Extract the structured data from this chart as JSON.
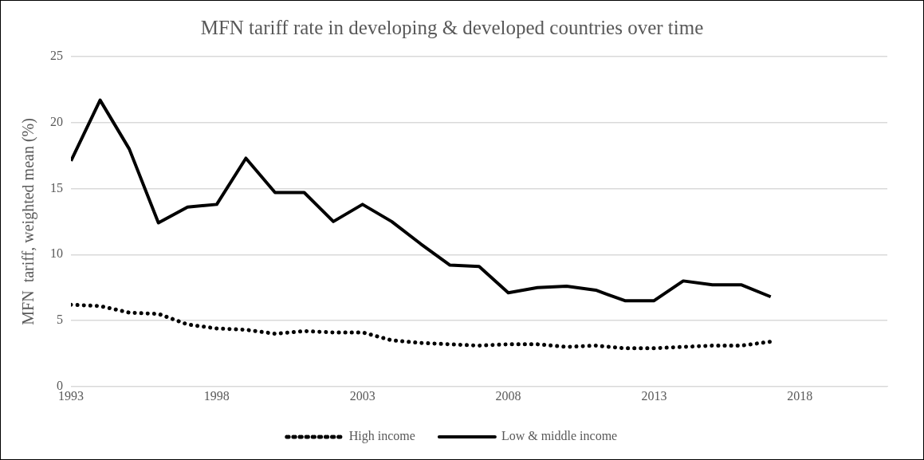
{
  "chart_data": {
    "type": "line",
    "title": "MFN tariff rate in developing & developed countries over time",
    "ylabel": "MFN  tariff, weighted mean (%)",
    "x": [
      1993,
      1994,
      1995,
      1996,
      1997,
      1998,
      1999,
      2000,
      2001,
      2002,
      2003,
      2004,
      2005,
      2006,
      2007,
      2008,
      2009,
      2010,
      2011,
      2012,
      2013,
      2014,
      2015,
      2016,
      2017
    ],
    "series": [
      {
        "name": "High income",
        "color": "#000000",
        "line_style": "dotted",
        "values": [
          6.2,
          6.1,
          5.6,
          5.5,
          4.7,
          4.4,
          4.3,
          4.0,
          4.2,
          4.1,
          4.1,
          3.5,
          3.3,
          3.2,
          3.1,
          3.2,
          3.2,
          3.0,
          3.1,
          2.9,
          2.9,
          3.0,
          3.1,
          3.1,
          3.4
        ]
      },
      {
        "name": "Low & middle income",
        "color": "#000000",
        "line_style": "solid",
        "values": [
          17.1,
          21.7,
          18.0,
          12.4,
          13.6,
          13.8,
          17.3,
          14.7,
          14.7,
          12.5,
          13.8,
          12.5,
          10.8,
          9.2,
          9.1,
          7.1,
          7.5,
          7.6,
          7.3,
          6.5,
          6.5,
          8.0,
          7.7,
          7.7,
          6.8
        ]
      }
    ],
    "xlim": [
      1993,
      2021
    ],
    "xticks": [
      1993,
      1998,
      2003,
      2008,
      2013,
      2018
    ],
    "ylim": [
      0,
      25
    ],
    "yticks": [
      0,
      5,
      10,
      15,
      20,
      25
    ],
    "grid": "y",
    "legend": "bottom",
    "marker": "none"
  }
}
